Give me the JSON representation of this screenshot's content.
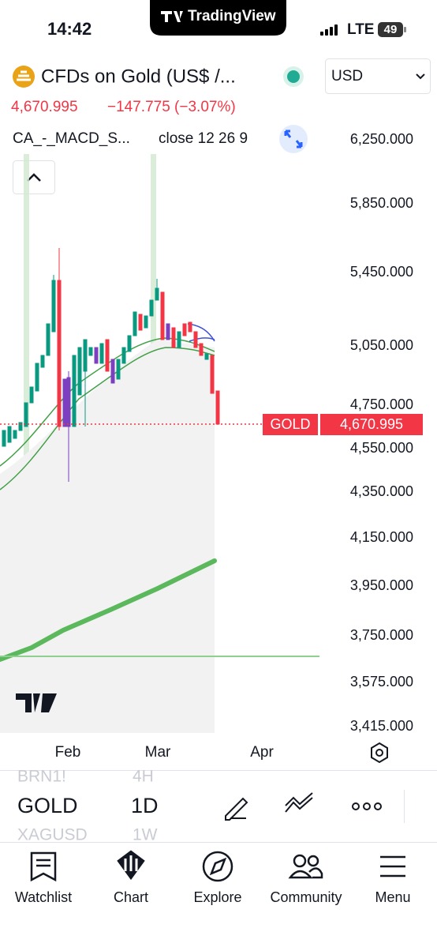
{
  "status_bar": {
    "time": "14:42",
    "app": "TradingView",
    "network": "LTE",
    "battery": "49"
  },
  "header": {
    "symbol_title": "CFDs on Gold (US$ /...",
    "currency": "USD",
    "price": "4,670.995",
    "change": "−147.775 (−3.07%)"
  },
  "indicator": {
    "label": "CA_-_MACD_S...",
    "params": "close 12 26 9"
  },
  "price_axis": {
    "labels": [
      "6,250.000",
      "5,850.000",
      "5,450.000",
      "5,050.000",
      "4,750.000",
      "4,550.000",
      "4,350.000",
      "4,150.000",
      "3,950.000",
      "3,750.000",
      "3,575.000",
      "3,415.000"
    ],
    "last_label": "GOLD",
    "last_price": "4,670.995"
  },
  "time_axis": [
    "Feb",
    "Mar",
    "Apr"
  ],
  "symbol_picker": {
    "previous": "BRN1!",
    "current": "GOLD",
    "next": "XAGUSD"
  },
  "interval_picker": {
    "previous": "4H",
    "current": "1D",
    "next": "1W"
  },
  "nav": [
    "Watchlist",
    "Chart",
    "Explore",
    "Community",
    "Menu"
  ]
}
